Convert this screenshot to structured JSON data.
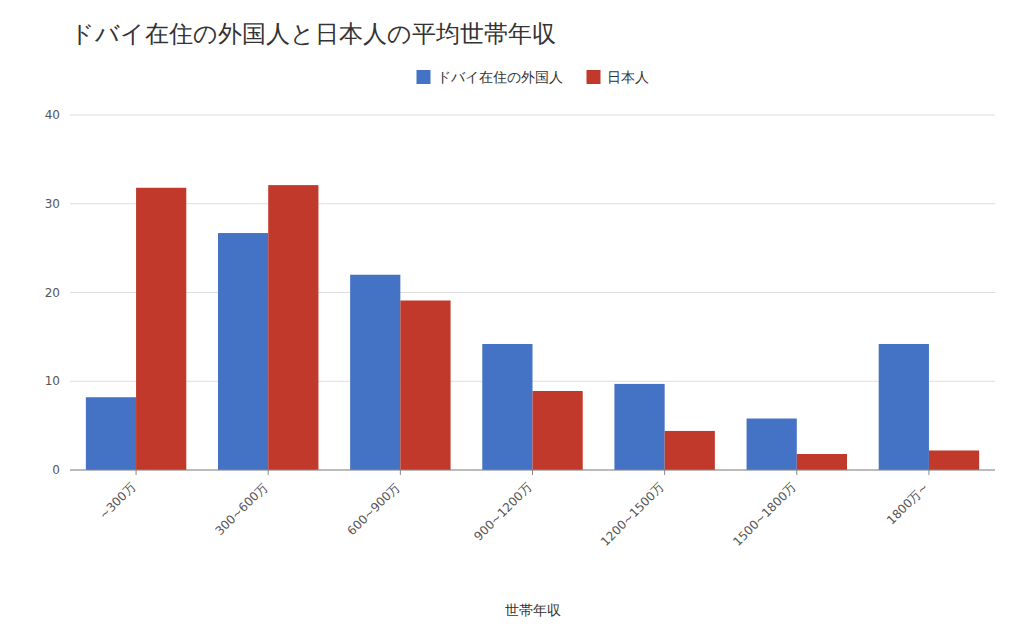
{
  "chart_data": {
    "type": "bar",
    "title": "ドバイ在住の外国人と日本人の平均世帯年収",
    "xlabel": "世帯年収",
    "categories": [
      "~300万",
      "300~600万",
      "600~900万",
      "900~1200万",
      "1200~1500万",
      "1500~1800万",
      "1800万~"
    ],
    "series": [
      {
        "name": "ドバイ在住の外国人",
        "color": "#4472C4",
        "values": [
          8.2,
          26.7,
          22.0,
          14.2,
          9.7,
          5.8,
          14.2
        ]
      },
      {
        "name": "日本人",
        "color": "#C0392B",
        "values": [
          31.8,
          32.1,
          19.1,
          8.9,
          4.4,
          1.8,
          2.2
        ]
      }
    ],
    "ylim": [
      0,
      40
    ],
    "yticks": [
      0,
      10,
      20,
      30,
      40
    ],
    "grid": true,
    "legend": "top"
  }
}
